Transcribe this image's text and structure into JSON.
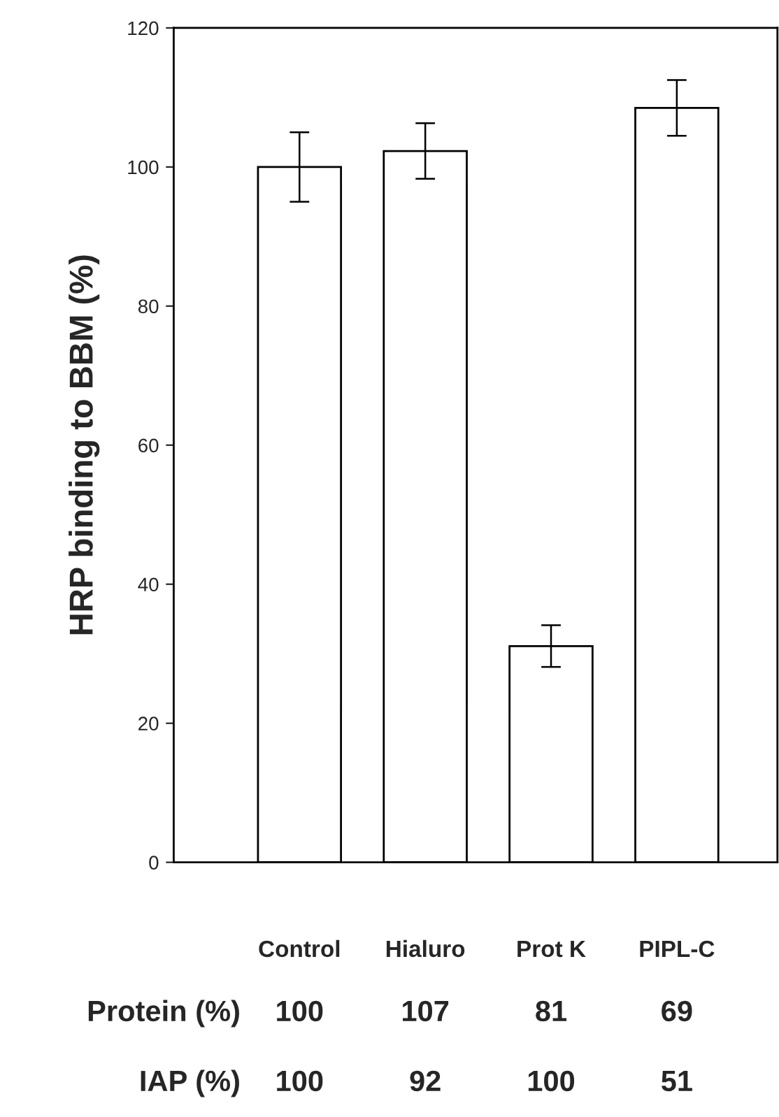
{
  "chart_data": {
    "type": "bar",
    "ylabel": "HRP binding to BBM (%)",
    "categories": [
      "Control",
      "Hialuro",
      "Prot K",
      "PIPL-C"
    ],
    "values": [
      100,
      102.3,
      31.1,
      108.5
    ],
    "errors": [
      5,
      4,
      3,
      4
    ],
    "color": "#ffffff",
    "ylim": [
      0,
      120
    ],
    "yticks": [
      0,
      20,
      40,
      60,
      80,
      100,
      120
    ],
    "grid": false,
    "legend": false,
    "annotations": [
      "Protein (%)",
      "100",
      "107",
      "81",
      "69",
      "IAP (%)",
      "100",
      "92",
      "100",
      "51"
    ]
  }
}
